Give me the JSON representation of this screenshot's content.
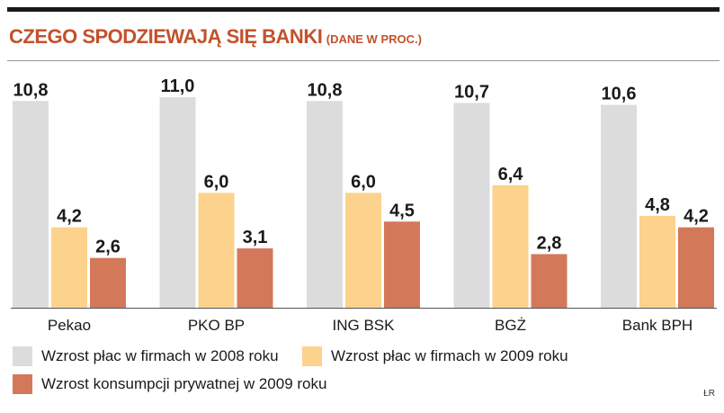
{
  "title": "CZEGO SPODZIEWAJĄ SIĘ BANKI",
  "subtitle": "(DANE W PROC.)",
  "credit": "ŁR",
  "colors": {
    "title": "#c2522c",
    "series_2008": "#dcdcdc",
    "series_2009_wages": "#fcd28c",
    "series_2009_consumption": "#d4785a"
  },
  "legend": [
    {
      "label": "Wzrost płac w firmach w 2008 roku"
    },
    {
      "label": "Wzrost płac w firmach w 2009 roku"
    },
    {
      "label": "Wzrost konsumpcji prywatnej w 2009 roku"
    }
  ],
  "chart_data": {
    "type": "bar",
    "title": "CZEGO SPODZIEWAJĄ SIĘ BANKI (DANE W PROC.)",
    "xlabel": "",
    "ylabel": "",
    "ylim": [
      0,
      11
    ],
    "grid": false,
    "categories": [
      "Pekao",
      "PKO BP",
      "ING BSK",
      "BGŻ",
      "Bank BPH"
    ],
    "series": [
      {
        "name": "Wzrost płac w firmach w 2008 roku",
        "values": [
          10.8,
          11.0,
          10.8,
          10.7,
          10.6
        ],
        "labels": [
          "10,8",
          "11,0",
          "10,8",
          "10,7",
          "10,6"
        ]
      },
      {
        "name": "Wzrost płac w firmach w 2009 roku",
        "values": [
          4.2,
          6.0,
          6.0,
          6.4,
          4.8
        ],
        "labels": [
          "4,2",
          "6,0",
          "6,0",
          "6,4",
          "4,8"
        ]
      },
      {
        "name": "Wzrost konsumpcji prywatnej w 2009 roku",
        "values": [
          2.6,
          3.1,
          4.5,
          2.8,
          4.2
        ],
        "labels": [
          "2,6",
          "3,1",
          "4,5",
          "2,8",
          "4,2"
        ]
      }
    ]
  }
}
